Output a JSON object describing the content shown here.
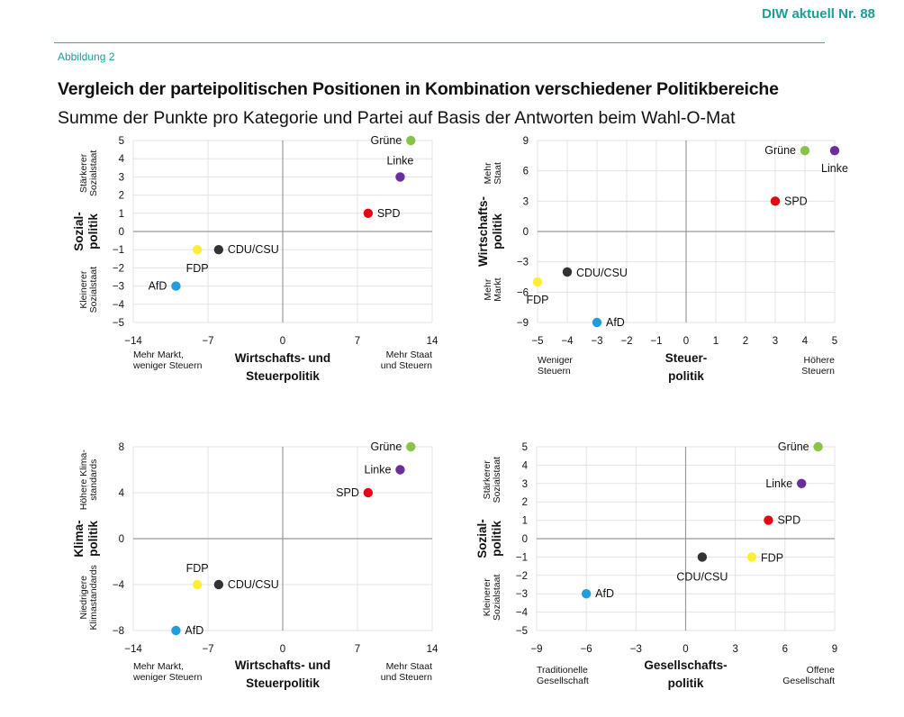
{
  "header": {
    "publication": "DIW aktuell Nr. 88",
    "figure_label": "Abbildung 2",
    "title": "Vergleich der parteipolitischen Positionen in Kombination verschiedener Politikbereiche",
    "subtitle": "Summe der Punkte pro Kategorie und Partei auf Basis der Antworten beim Wahl-O-Mat"
  },
  "colors": {
    "Grüne": "#8bc34a",
    "Linke": "#6a2f9a",
    "SPD": "#e30613",
    "CDU/CSU": "#333333",
    "FDP": "#ffee33",
    "AfD": "#1e9fdb",
    "axis": "#999999",
    "grid": "#e3e3e3"
  },
  "chart_data": [
    {
      "type": "scatter",
      "xlim": [
        -14,
        14
      ],
      "ylim": [
        -5,
        5
      ],
      "xticks": [
        -14,
        -7,
        0,
        7,
        14
      ],
      "yticks": [
        -5,
        -4,
        -3,
        -2,
        -1,
        0,
        1,
        2,
        3,
        4,
        5
      ],
      "xlabel": [
        "Wirtschafts- und",
        "Steuerpolitik"
      ],
      "ylabel": [
        "Sozial-",
        "politik"
      ],
      "x_left_note": [
        "Mehr Markt,",
        "weniger Steuern"
      ],
      "x_right_note": [
        "Mehr Staat",
        "und Steuern"
      ],
      "y_top_note": [
        "Stärkerer",
        "Sozialstaat"
      ],
      "y_bottom_note": [
        "Kleinerer",
        "Sozialstaat"
      ],
      "grid": true,
      "points": [
        {
          "party": "Grüne",
          "x": 12,
          "y": 5
        },
        {
          "party": "Linke",
          "x": 11,
          "y": 3
        },
        {
          "party": "SPD",
          "x": 8,
          "y": 1
        },
        {
          "party": "CDU/CSU",
          "x": -6,
          "y": -1
        },
        {
          "party": "FDP",
          "x": -8,
          "y": -1
        },
        {
          "party": "AfD",
          "x": -10,
          "y": -3
        }
      ]
    },
    {
      "type": "scatter",
      "xlim": [
        -5,
        5
      ],
      "ylim": [
        -9,
        9
      ],
      "xticks": [
        -5,
        -4,
        -3,
        -2,
        -1,
        0,
        1,
        2,
        3,
        4,
        5
      ],
      "yticks": [
        -9,
        -6,
        -3,
        0,
        3,
        6,
        9
      ],
      "xlabel": [
        "Steuer-",
        "politik"
      ],
      "ylabel": [
        "Wirtschafts-",
        "politik"
      ],
      "x_left_note": [
        "Weniger",
        "Steuern"
      ],
      "x_right_note": [
        "Höhere",
        "Steuern"
      ],
      "y_top_note": [
        "Mehr",
        "Staat"
      ],
      "y_bottom_note": [
        "Mehr",
        "Markt"
      ],
      "grid": true,
      "points": [
        {
          "party": "Grüne",
          "x": 4,
          "y": 8
        },
        {
          "party": "Linke",
          "x": 5,
          "y": 8
        },
        {
          "party": "SPD",
          "x": 3,
          "y": 3
        },
        {
          "party": "CDU/CSU",
          "x": -4,
          "y": -4
        },
        {
          "party": "FDP",
          "x": -5,
          "y": -5
        },
        {
          "party": "AfD",
          "x": -3,
          "y": -9
        }
      ]
    },
    {
      "type": "scatter",
      "xlim": [
        -14,
        14
      ],
      "ylim": [
        -8,
        8
      ],
      "xticks": [
        -14,
        -7,
        0,
        7,
        14
      ],
      "yticks": [
        -8,
        -4,
        0,
        4,
        8
      ],
      "xlabel": [
        "Wirtschafts- und",
        "Steuerpolitik"
      ],
      "ylabel": [
        "Klima-",
        "politik"
      ],
      "x_left_note": [
        "Mehr Markt,",
        "weniger Steuern"
      ],
      "x_right_note": [
        "Mehr Staat",
        "und Steuern"
      ],
      "y_top_note": [
        "Höhere Klima-",
        "standards"
      ],
      "y_bottom_note": [
        "Niedrigere",
        "Klimastandards"
      ],
      "grid": true,
      "points": [
        {
          "party": "Grüne",
          "x": 12,
          "y": 8
        },
        {
          "party": "Linke",
          "x": 11,
          "y": 6
        },
        {
          "party": "SPD",
          "x": 8,
          "y": 4
        },
        {
          "party": "CDU/CSU",
          "x": -6,
          "y": -4
        },
        {
          "party": "FDP",
          "x": -8,
          "y": -4
        },
        {
          "party": "AfD",
          "x": -10,
          "y": -8
        }
      ]
    },
    {
      "type": "scatter",
      "xlim": [
        -9,
        9
      ],
      "ylim": [
        -5,
        5
      ],
      "xticks": [
        -9,
        -6,
        -3,
        0,
        3,
        6,
        9
      ],
      "yticks": [
        -5,
        -4,
        -3,
        -2,
        -1,
        0,
        1,
        2,
        3,
        4,
        5
      ],
      "xlabel": [
        "Gesellschafts-",
        "politik"
      ],
      "ylabel": [
        "Sozial-",
        "politik"
      ],
      "x_left_note": [
        "Traditionelle",
        "Gesellschaft"
      ],
      "x_right_note": [
        "Offene",
        "Gesellschaft"
      ],
      "y_top_note": [
        "Stärkerer",
        "Sozialstaat"
      ],
      "y_bottom_note": [
        "Kleinerer",
        "Sozialstaat"
      ],
      "grid": true,
      "points": [
        {
          "party": "Grüne",
          "x": 8,
          "y": 5
        },
        {
          "party": "Linke",
          "x": 7,
          "y": 3
        },
        {
          "party": "SPD",
          "x": 5,
          "y": 1
        },
        {
          "party": "CDU/CSU",
          "x": 1,
          "y": -1
        },
        {
          "party": "FDP",
          "x": 4,
          "y": -1
        },
        {
          "party": "AfD",
          "x": -6,
          "y": -3
        }
      ]
    }
  ]
}
